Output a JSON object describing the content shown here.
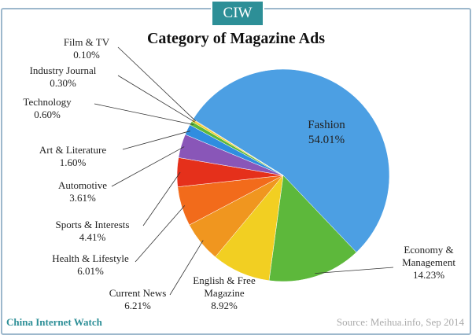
{
  "header": {
    "logo": "CIW"
  },
  "footer": {
    "brand": "China Internet Watch",
    "source": "Source: Meihua.info,  Sep 2014"
  },
  "chart_data": {
    "type": "pie",
    "title": "Category of Magazine Ads",
    "categories": [
      "Fashion",
      "Economy & Management",
      "English & Free Magazine",
      "Current News",
      "Health & Lifestyle",
      "Sports & Interests",
      "Automotive",
      "Art & Literature",
      "Technology",
      "Industry Journal",
      "Film & TV"
    ],
    "values": [
      54.01,
      14.23,
      8.92,
      6.21,
      6.01,
      4.41,
      3.61,
      1.6,
      0.6,
      0.3,
      0.1
    ],
    "value_labels": [
      "54.01%",
      "14.23%",
      "8.92%",
      "6.21%",
      "6.01%",
      "4.41%",
      "3.61%",
      "1.60%",
      "0.60%",
      "0.30%",
      "0.10%"
    ],
    "colors": [
      "#4c9fe3",
      "#5db83b",
      "#f2cf22",
      "#f0961f",
      "#f26b1b",
      "#e5301b",
      "#8956b8",
      "#2f8de0",
      "#5db83b",
      "#f2cf22",
      "#f0961f"
    ]
  }
}
